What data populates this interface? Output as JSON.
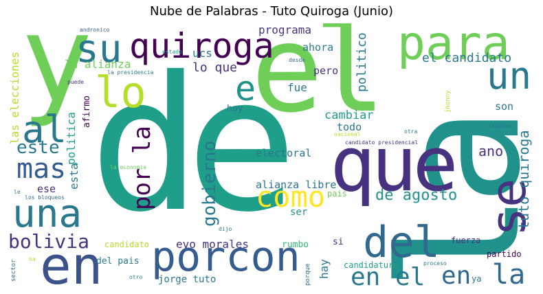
{
  "title": "Nube de Palabras - Tuto Quiroga (Junio)",
  "words": {
    "de": "de",
    "la": "la",
    "el": "el",
    "y": "y",
    "que": "que",
    "en": "en",
    "para": "para",
    "quiroga": "quiroga",
    "su": "su",
    "lo": "lo",
    "un": "un",
    "al": "al",
    "se": "se",
    "del": "del",
    "una": "una",
    "porcon": "porcon",
    "e": "e",
    "mas": "mas",
    "como": "como",
    "este": "este",
    "bolivia": "bolivia",
    "gobierno": "gobierno",
    "por_la": "por la",
    "en_el": "en el",
    "el_candidato": "el candidato",
    "tuto_quiroga": "tuto quiroga",
    "de_agosto": "de agosto",
    "programa": "programa",
    "ucs": "ucs",
    "la_alianza": "la alianza",
    "lo_que": "lo que",
    "ahora": "ahora",
    "las_elecciones": "las elecciones",
    "politica": "politica",
    "politico": "politico",
    "fue": "fue",
    "pero": "pero",
    "ano": "ano",
    "son": "son",
    "cambiar": "cambiar",
    "todo": "todo",
    "hoy": "hoy",
    "afirmo": "afirmo",
    "electoral": "electoral",
    "alianza_libre": "alianza libre",
    "ese": "ese",
    "esta": "esta",
    "evo_morales": "evo morales",
    "jorge_tuto": "jorge tuto",
    "ser": "ser",
    "pais": "pais",
    "rumbo": "rumbo",
    "si": "si",
    "hay": "hay",
    "candidatura": "candidatura",
    "del_pais": "del pais",
    "candidato": "candidato",
    "fuerza": "fuerza",
    "partido": "partido",
    "ya": "ya",
    "andronico": "andronico",
    "estado": "estado",
    "la_presidencia": "la presidencia",
    "puede": "puede",
    "desde": "desde",
    "nacional": "nacional",
    "candidato_presidencial": "candidato presidencial",
    "otra": "otra",
    "tambien": "tambien",
    "jhonny": "jhonny",
    "la_economia": "la economia",
    "le": "le",
    "los_bloqueos": "los bloqueos",
    "dijo": "dijo",
    "ha": "ha",
    "sector": "sector",
    "otro": "otro",
    "porque": "porque",
    "proceso": "proceso"
  },
  "palette": {
    "dark_purple": "#440154",
    "indigo": "#46327e",
    "slate_blue": "#365c8d",
    "steel_blue": "#3b528b",
    "blue": "#31688e",
    "teal": "#2a788e",
    "teal_green": "#21918c",
    "sea_green": "#1f9e89",
    "green": "#35b779",
    "light_green": "#6ece58",
    "lime": "#b5de2b",
    "yellow": "#fde725"
  }
}
